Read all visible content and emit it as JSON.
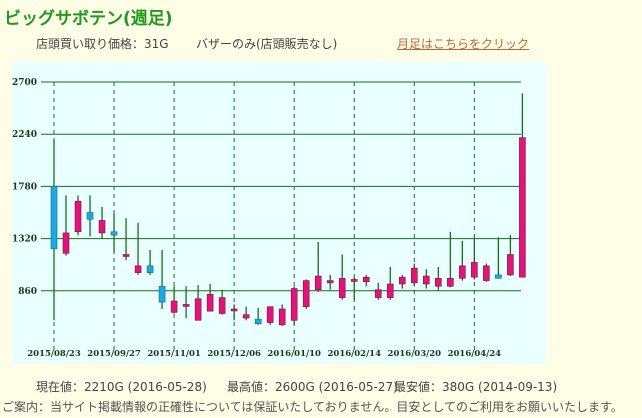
{
  "header": {
    "title": "ビッグサボテン(週足)",
    "buy_price": "店頭買い取り価格：31G",
    "bazaar_note": "バザーのみ(店頭販売なし)",
    "monthly_link": "月足はこちらをクリック"
  },
  "footer": {
    "current": "現在値：2210G (2016-05-28)",
    "high": "最高値：2600G (2016-05-27)",
    "low": "最安値：380G (2014-09-13)",
    "notice": "ご案内：当サイト掲載情報の正確性については保証いたしておりません。目安としてのご利用をお願いいたします。"
  },
  "colors": {
    "up": "#e0157a",
    "down": "#1ea8e0",
    "wick": "#1a6e12",
    "grid": "#1a6e12",
    "plot_bg": "#eaffff",
    "title": "#1f9a1f"
  },
  "chart_data": {
    "type": "candlestick",
    "ylim": [
      400,
      2700
    ],
    "yticks": [
      860,
      1320,
      1780,
      2240,
      2700
    ],
    "xticks": [
      "2015/08/23",
      "2015/09/27",
      "2015/11/01",
      "2015/12/06",
      "2016/01/10",
      "2016/02/14",
      "2016/03/20",
      "2016/04/24"
    ],
    "candles": [
      {
        "o": 1780,
        "h": 2190,
        "l": 600,
        "c": 1230
      },
      {
        "o": 1190,
        "h": 1700,
        "l": 1170,
        "c": 1370
      },
      {
        "o": 1380,
        "h": 1700,
        "l": 1350,
        "c": 1650
      },
      {
        "o": 1550,
        "h": 1700,
        "l": 1340,
        "c": 1490
      },
      {
        "o": 1370,
        "h": 1600,
        "l": 1320,
        "c": 1480
      },
      {
        "o": 1380,
        "h": 1540,
        "l": 1200,
        "c": 1350
      },
      {
        "o": 1180,
        "h": 1500,
        "l": 1130,
        "c": 1180
      },
      {
        "o": 1020,
        "h": 1460,
        "l": 1000,
        "c": 1080
      },
      {
        "o": 1080,
        "h": 1220,
        "l": 1000,
        "c": 1020
      },
      {
        "o": 900,
        "h": 1220,
        "l": 700,
        "c": 760
      },
      {
        "o": 670,
        "h": 900,
        "l": 660,
        "c": 770
      },
      {
        "o": 730,
        "h": 900,
        "l": 620,
        "c": 740
      },
      {
        "o": 600,
        "h": 910,
        "l": 600,
        "c": 790
      },
      {
        "o": 680,
        "h": 920,
        "l": 680,
        "c": 830
      },
      {
        "o": 660,
        "h": 870,
        "l": 650,
        "c": 800
      },
      {
        "o": 700,
        "h": 740,
        "l": 600,
        "c": 700
      },
      {
        "o": 620,
        "h": 720,
        "l": 600,
        "c": 650
      },
      {
        "o": 610,
        "h": 710,
        "l": 560,
        "c": 570
      },
      {
        "o": 580,
        "h": 720,
        "l": 560,
        "c": 720
      },
      {
        "o": 560,
        "h": 740,
        "l": 550,
        "c": 700
      },
      {
        "o": 600,
        "h": 900,
        "l": 560,
        "c": 880
      },
      {
        "o": 720,
        "h": 960,
        "l": 700,
        "c": 950
      },
      {
        "o": 870,
        "h": 1290,
        "l": 850,
        "c": 990
      },
      {
        "o": 930,
        "h": 1000,
        "l": 870,
        "c": 950
      },
      {
        "o": 800,
        "h": 1180,
        "l": 780,
        "c": 970
      },
      {
        "o": 960,
        "h": 980,
        "l": 780,
        "c": 960
      },
      {
        "o": 940,
        "h": 1000,
        "l": 900,
        "c": 980
      },
      {
        "o": 800,
        "h": 930,
        "l": 780,
        "c": 870
      },
      {
        "o": 800,
        "h": 1070,
        "l": 780,
        "c": 920
      },
      {
        "o": 920,
        "h": 1000,
        "l": 880,
        "c": 980
      },
      {
        "o": 930,
        "h": 1100,
        "l": 900,
        "c": 1060
      },
      {
        "o": 920,
        "h": 1050,
        "l": 880,
        "c": 990
      },
      {
        "o": 900,
        "h": 1070,
        "l": 860,
        "c": 970
      },
      {
        "o": 900,
        "h": 1380,
        "l": 890,
        "c": 970
      },
      {
        "o": 970,
        "h": 1300,
        "l": 950,
        "c": 1080
      },
      {
        "o": 980,
        "h": 1330,
        "l": 960,
        "c": 1110
      },
      {
        "o": 950,
        "h": 1100,
        "l": 940,
        "c": 1080
      },
      {
        "o": 1000,
        "h": 1330,
        "l": 980,
        "c": 970
      },
      {
        "o": 1000,
        "h": 1350,
        "l": 990,
        "c": 1180
      },
      {
        "o": 980,
        "h": 2600,
        "l": 980,
        "c": 2210
      }
    ]
  }
}
